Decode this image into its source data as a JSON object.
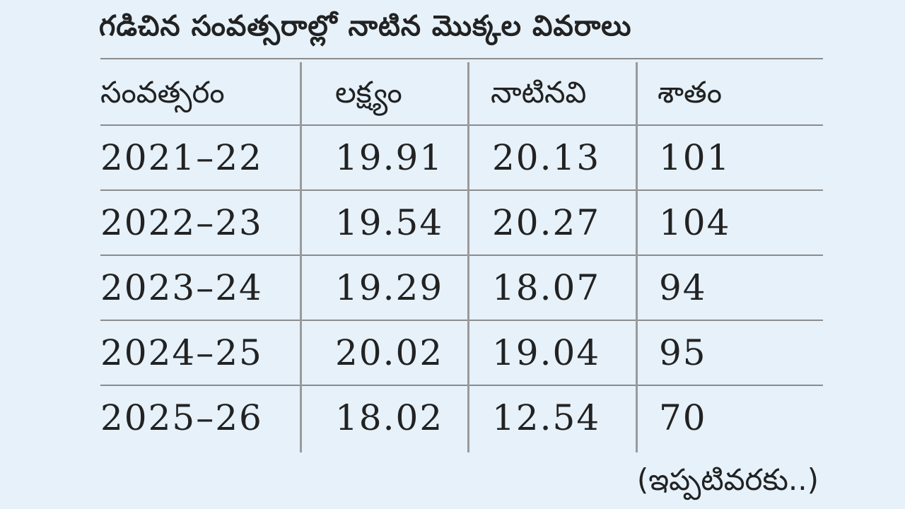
{
  "title": "గడిచిన సంవత్సరాల్లో నాటిన మొక్కల వివరాలు",
  "footnote": "(ఇప్పటివరకు..)",
  "chart_data": {
    "type": "table",
    "title": "గడిచిన సంవత్సరాల్లో నాటిన మొక్కల వివరాలు",
    "columns": [
      "సంవత్సరం",
      "లక్ష్యం",
      "నాటినవి",
      "శాతం"
    ],
    "rows": [
      [
        "2021–22",
        "19.91",
        "20.13",
        "101"
      ],
      [
        "2022–23",
        "19.54",
        "20.27",
        "104"
      ],
      [
        "2023–24",
        "19.29",
        "18.07",
        "94"
      ],
      [
        "2024–25",
        "20.02",
        "19.04",
        "95"
      ],
      [
        "2025–26",
        "18.02",
        "12.54",
        "70"
      ]
    ],
    "note": "(ఇప్పటివరకు..)"
  }
}
